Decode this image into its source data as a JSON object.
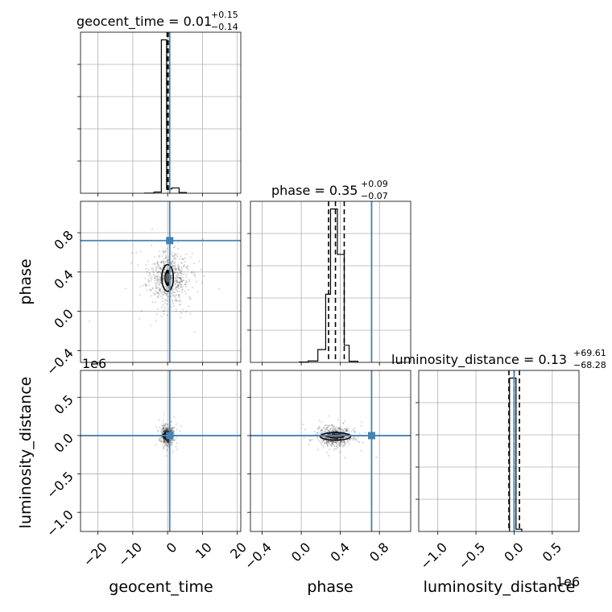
{
  "chart_data": {
    "type": "corner",
    "parameters": [
      "geocent_time",
      "phase",
      "luminosity_distance"
    ],
    "truth": {
      "geocent_time": 0.6,
      "phase": 0.72,
      "luminosity_distance": 0
    },
    "truth_color": "#4682b4",
    "grid": true,
    "titles": [
      {
        "param": "geocent_time",
        "main": "geocent_time = 0.01",
        "sup": "+0.15",
        "sub": "−0.14"
      },
      {
        "param": "phase",
        "main": "phase = 0.35",
        "sup": "+0.09",
        "sub": "−0.07"
      },
      {
        "param": "luminosity_distance",
        "main": "luminosity_distance = 0.13",
        "sup": "+69.61",
        "sub": "−68.28"
      }
    ],
    "xlabels": [
      "geocent_time",
      "phase",
      "luminosity_distance"
    ],
    "ylabels": [
      "phase",
      "luminosity_distance"
    ],
    "ranges": {
      "geocent_time": [
        -25,
        21
      ],
      "phase": [
        -0.52,
        1.12
      ],
      "luminosity_distance": [
        -1250000,
        850000
      ]
    },
    "offset_text": "1e6",
    "ticks": {
      "geocent_time": {
        "values": [
          -20,
          -10,
          0,
          10,
          20
        ],
        "labels": [
          "−20",
          "−10",
          "0",
          "10",
          "20"
        ]
      },
      "phase": {
        "values": [
          -0.4,
          0.0,
          0.4,
          0.8
        ],
        "labels": [
          "−0.4",
          "0.0",
          "0.4",
          "0.8"
        ]
      },
      "luminosity_distance": {
        "values": [
          -1000000,
          -500000,
          0,
          500000
        ],
        "labels": [
          "−1.0",
          "−0.5",
          "0.0",
          "0.5"
        ]
      }
    },
    "histograms": [
      {
        "param": "geocent_time",
        "bin_edges": [
          -6.6,
          -3.9,
          -1.8,
          -0.3,
          1.2,
          3.3,
          5.4
        ],
        "counts": [
          1,
          8,
          1000,
          28,
          35,
          5
        ],
        "quantiles": [
          -0.13,
          0.01,
          0.16
        ]
      },
      {
        "param": "phase",
        "bin_edges": [
          -0.02,
          0.07,
          0.17,
          0.25,
          0.3,
          0.37,
          0.44,
          0.49,
          0.58
        ],
        "counts": [
          1,
          5,
          45,
          240,
          540,
          380,
          60,
          4
        ],
        "quantiles": [
          0.28,
          0.35,
          0.44
        ]
      },
      {
        "param": "luminosity_distance",
        "bin_edges": [
          -60000,
          25000,
          100000
        ],
        "counts": [
          1000,
          15
        ],
        "quantiles": [
          -68150,
          130,
          69740
        ]
      }
    ],
    "scatter_2d": [
      {
        "x": "geocent_time",
        "y": "phase",
        "center": [
          0,
          0.34
        ],
        "spread": [
          3.0,
          0.13
        ],
        "contour_half_width": [
          1.2,
          0.12
        ]
      },
      {
        "x": "geocent_time",
        "y": "luminosity_distance",
        "center": [
          0,
          0
        ],
        "spread": [
          0.8,
          55000
        ],
        "contour_half_width": [
          0.8,
          20000
        ]
      },
      {
        "x": "phase",
        "y": "luminosity_distance",
        "center": [
          0.35,
          -10000
        ],
        "spread": [
          0.08,
          60000
        ],
        "contour_half_width": [
          0.14,
          28000
        ]
      }
    ]
  }
}
